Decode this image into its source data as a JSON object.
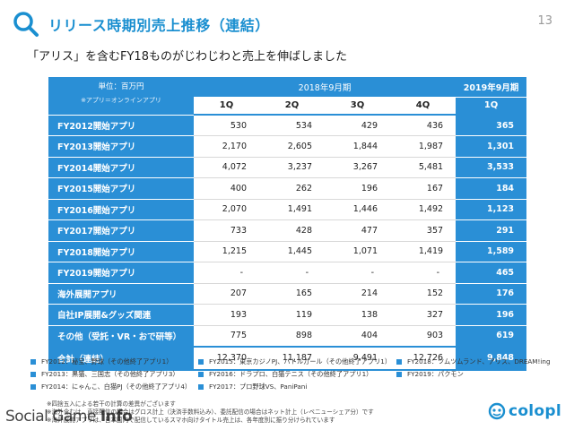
{
  "header": {
    "title": "リリース時期別売上推移（連結）",
    "page_number": "13",
    "subtitle": "「アリス」を含むFY18ものがじわじわと売上を伸ばしました"
  },
  "table": {
    "unit_label": "単位：百万円",
    "unit_note": "※アプリ＝オンラインアプリ",
    "period_2018": "2018年9月期",
    "period_2019": "2019年9月期",
    "quarters_2018": [
      "1Q",
      "2Q",
      "3Q",
      "4Q"
    ],
    "quarter_2019": "1Q",
    "rows": [
      {
        "label": "FY2012開始アプリ",
        "q": [
          "530",
          "534",
          "429",
          "436"
        ],
        "fy19": "365"
      },
      {
        "label": "FY2013開始アプリ",
        "q": [
          "2,170",
          "2,605",
          "1,844",
          "1,987"
        ],
        "fy19": "1,301"
      },
      {
        "label": "FY2014開始アプリ",
        "q": [
          "4,072",
          "3,237",
          "3,267",
          "5,481"
        ],
        "fy19": "3,533"
      },
      {
        "label": "FY2015開始アプリ",
        "q": [
          "400",
          "262",
          "196",
          "167"
        ],
        "fy19": "184"
      },
      {
        "label": "FY2016開始アプリ",
        "q": [
          "2,070",
          "1,491",
          "1,446",
          "1,492"
        ],
        "fy19": "1,123"
      },
      {
        "label": "FY2017開始アプリ",
        "q": [
          "733",
          "428",
          "477",
          "357"
        ],
        "fy19": "291"
      },
      {
        "label": "FY2018開始アプリ",
        "q": [
          "1,215",
          "1,445",
          "1,071",
          "1,419"
        ],
        "fy19": "1,589"
      },
      {
        "label": "FY2019開始アプリ",
        "q": [
          "-",
          "-",
          "-",
          "-"
        ],
        "fy19": "465"
      },
      {
        "label": "海外展開アプリ",
        "q": [
          "207",
          "165",
          "214",
          "152"
        ],
        "fy19": "176"
      },
      {
        "label": "自社IP展開&グッズ関連",
        "q": [
          "193",
          "119",
          "138",
          "327"
        ],
        "fy19": "196"
      },
      {
        "label": "その他（受託・VR・おで研等）",
        "q": [
          "775",
          "898",
          "404",
          "903"
        ],
        "fy19": "619"
      }
    ],
    "total": {
      "label": "合計（連結）",
      "q": [
        "12,370",
        "11,187",
        "9,491",
        "12,726"
      ],
      "fy19": "9,848"
    }
  },
  "legend": {
    "col1": [
      "FY2012：秘宝、野球（その他終了アプリ1）",
      "FY2013：黒猫、三国志（その他終了アプリ3）",
      "FY2014：にゃんこ、白猫PJ（その他終了アプリ4）"
    ],
    "col2": [
      "FY2015：東京カジノPJ、バトルガール（その他終了アプリ1）",
      "FY2016：ドラプロ、白猫テニス（その他終了アプリ1）",
      "FY2017：プロ野球VS、PaniPani"
    ],
    "col3": [
      "FY2018：ツムツムランド、アリス、DREAM!ing",
      "FY2019：パクモン"
    ]
  },
  "notes": [
    "※四捨五入による若干の計算の差異がございます",
    "※海外含むは、直接配信の場合はグロス計上（決済手数料込み）、委託配信の場合はネット計上（レベニューシェア分）です",
    "※海外展開アプリは、日本国内で配信しているスマホ向けタイトル売上は、各年度別に振り分けられています"
  ],
  "watermark": {
    "part1": "Social Game ",
    "part2": "Info"
  },
  "logo": {
    "text": "colopl"
  },
  "colors": {
    "accent": "#2a8fd6",
    "title": "#1a8fd0"
  }
}
